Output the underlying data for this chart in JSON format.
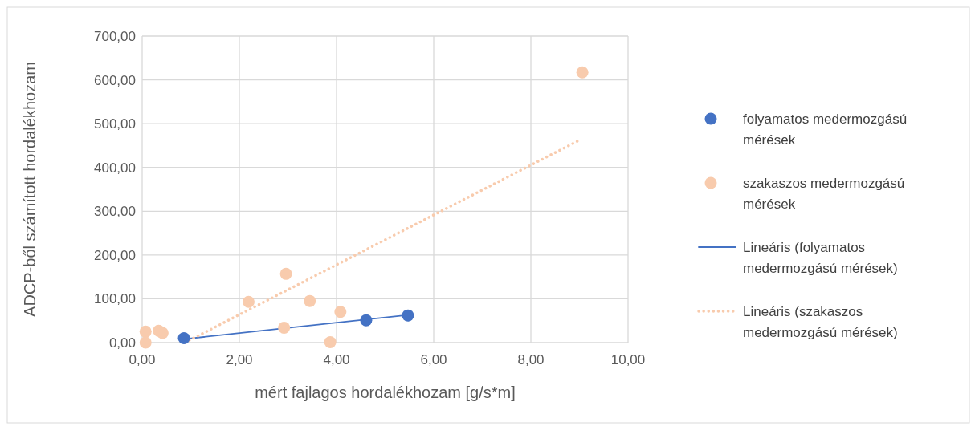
{
  "chart_data": {
    "type": "scatter",
    "xlabel": "mért fajlagos hordalékhozam [g/s*m]",
    "ylabel": "ADCP-ből számított hordalékhozam",
    "xlim": [
      0,
      10
    ],
    "ylim": [
      0,
      700
    ],
    "xticks": [
      {
        "value": 0,
        "label": "0,00"
      },
      {
        "value": 2,
        "label": "2,00"
      },
      {
        "value": 4,
        "label": "4,00"
      },
      {
        "value": 6,
        "label": "6,00"
      },
      {
        "value": 8,
        "label": "8,00"
      },
      {
        "value": 10,
        "label": "10,00"
      }
    ],
    "yticks": [
      {
        "value": 0,
        "label": "0,00"
      },
      {
        "value": 100,
        "label": "100,00"
      },
      {
        "value": 200,
        "label": "200,00"
      },
      {
        "value": 300,
        "label": "300,00"
      },
      {
        "value": 400,
        "label": "400,00"
      },
      {
        "value": 500,
        "label": "500,00"
      },
      {
        "value": 600,
        "label": "600,00"
      },
      {
        "value": 700,
        "label": "700,00"
      }
    ],
    "grid": true,
    "legend": "right",
    "marker": "circle",
    "series": [
      {
        "name": "folyamatos medermozgású mérések",
        "color": "#4472c4",
        "x": [
          0.86,
          4.61,
          5.47
        ],
        "values": [
          10,
          51,
          62
        ]
      },
      {
        "name": "szakaszos medermozgású mérések",
        "color": "#f8cbad",
        "x": [
          0.07,
          0.07,
          0.34,
          0.42,
          2.19,
          2.96,
          2.92,
          3.45,
          4.08,
          3.87,
          9.06
        ],
        "values": [
          25,
          0,
          27,
          22,
          93,
          157,
          34,
          95,
          70,
          1,
          617
        ]
      },
      {
        "name": "Lineáris (folyamatos medermozgású mérések)",
        "type": "line",
        "line_style": "solid",
        "marker": "none",
        "color": "#4472c4",
        "x": [
          0.86,
          5.47
        ],
        "values": [
          8,
          63
        ]
      },
      {
        "name": "Lineáris (szakaszos medermozgású mérések)",
        "type": "line",
        "line_style": "dotted",
        "marker": "none",
        "color": "#f8cbad",
        "x": [
          0.88,
          9.03
        ],
        "values": [
          0,
          464
        ]
      }
    ]
  }
}
